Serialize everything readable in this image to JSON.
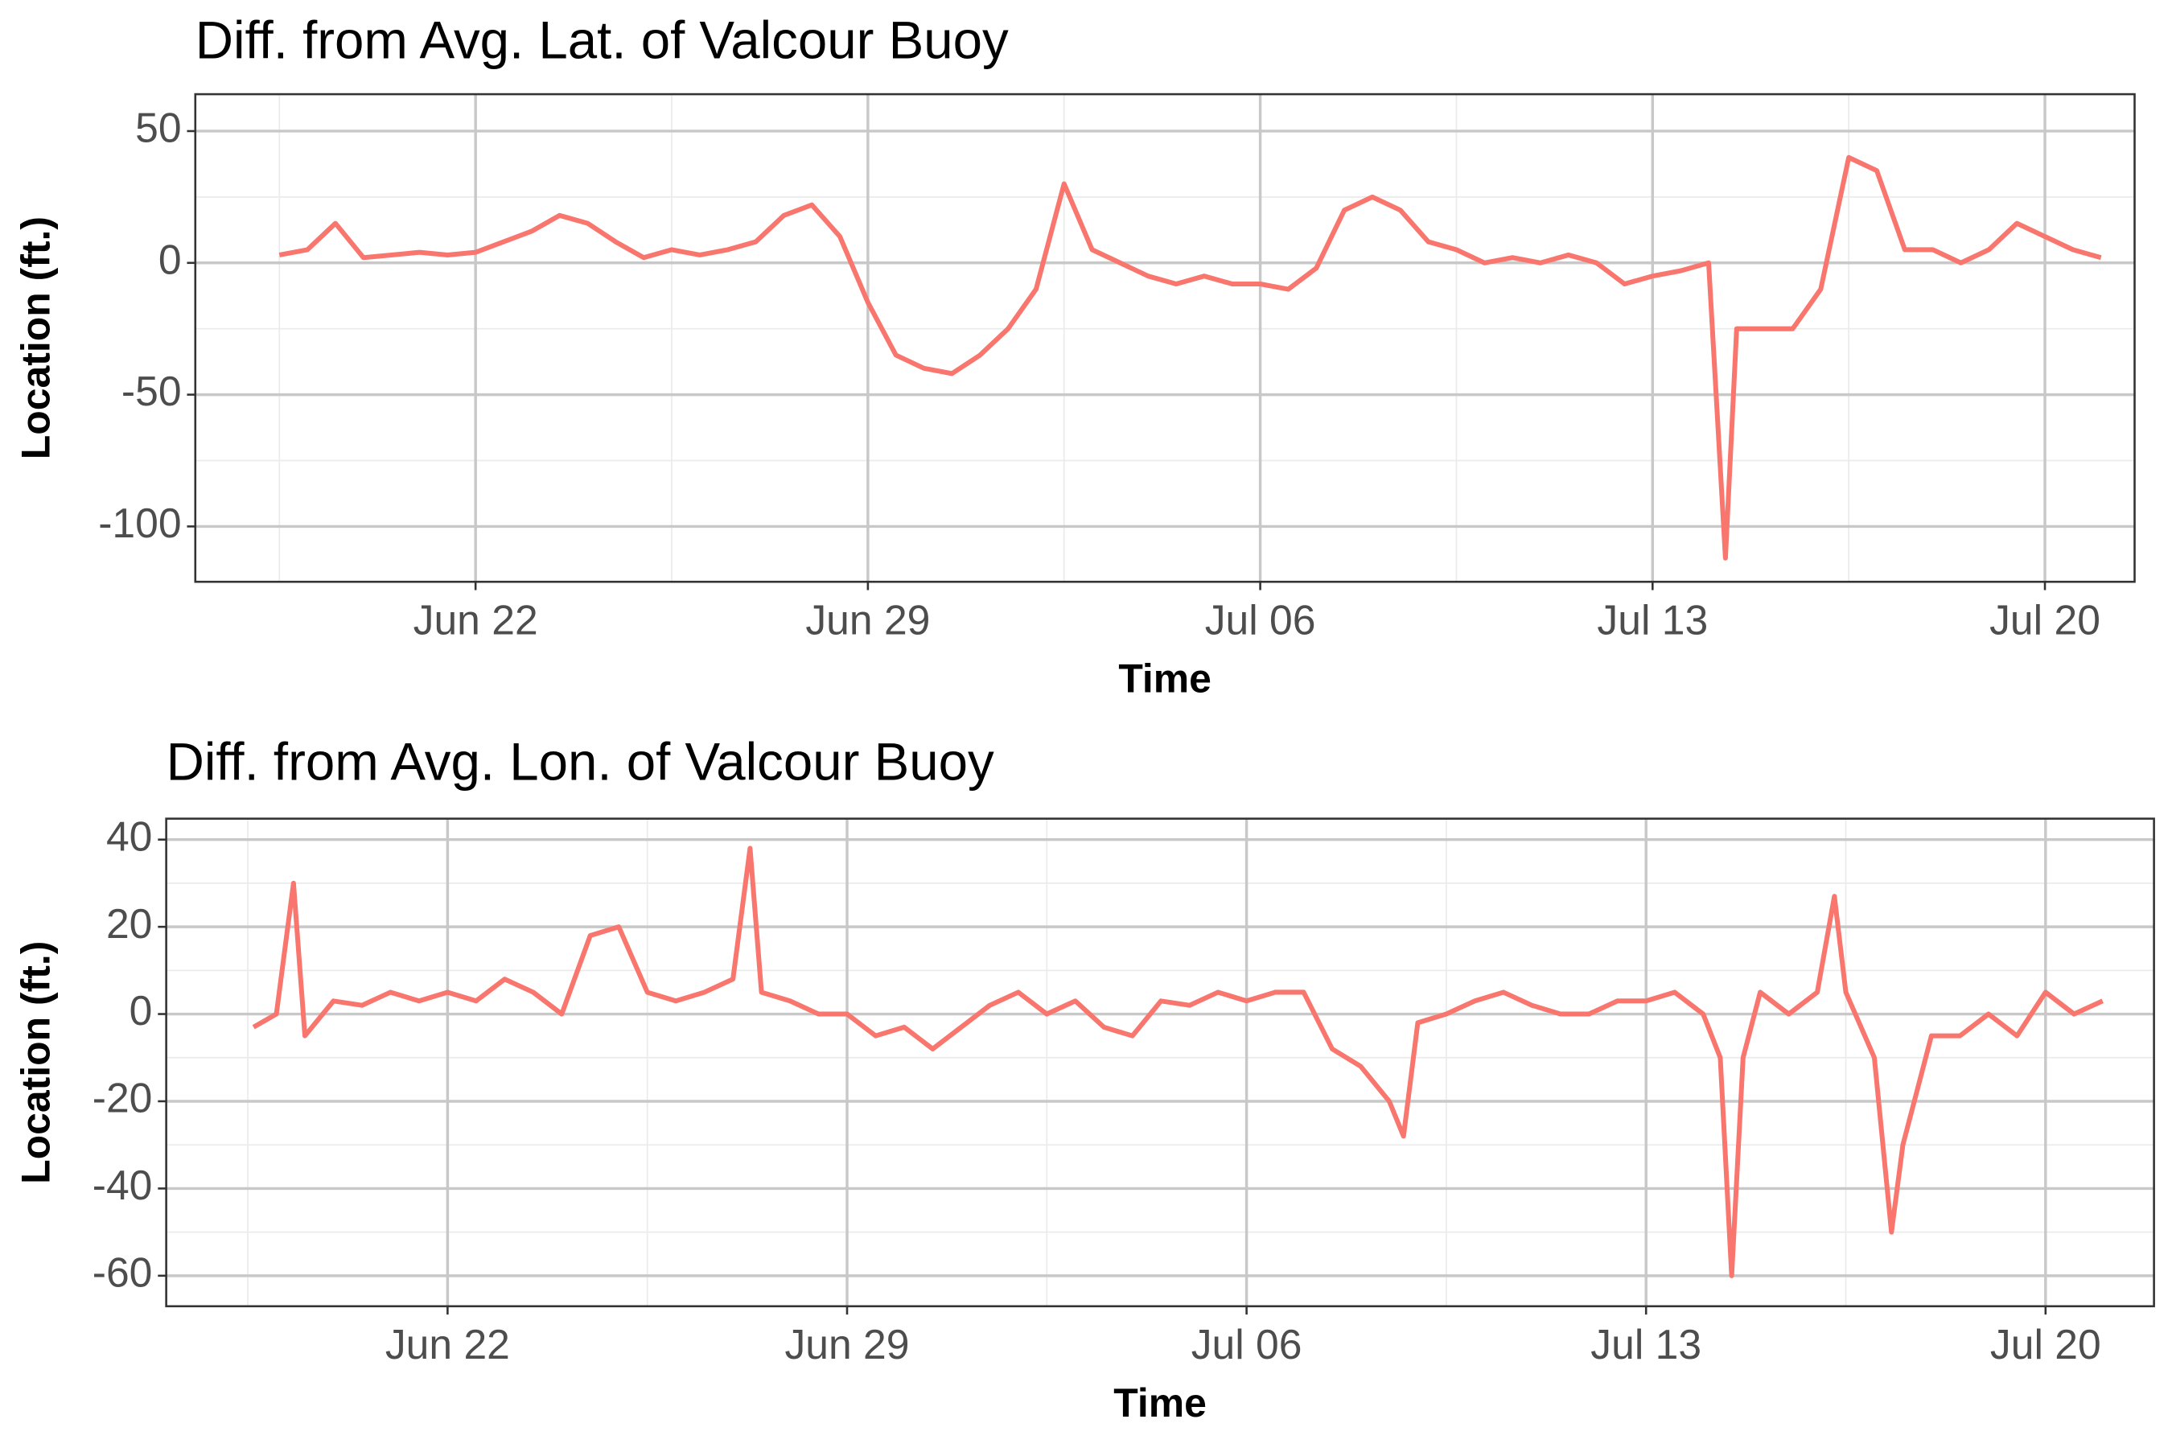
{
  "chart_data": [
    {
      "type": "line",
      "title": "Diff. from Avg. Lat. of Valcour Buoy",
      "x_label": "Time",
      "y_label": "Location (ft.)",
      "color": "#F8766D",
      "grid": true,
      "x": [
        18.5,
        19,
        19.5,
        20,
        20.5,
        21,
        21.5,
        22,
        22.5,
        23,
        23.5,
        24,
        24.5,
        25,
        25.5,
        26,
        26.5,
        27,
        27.5,
        28,
        28.5,
        29,
        29.5,
        30,
        30.5,
        31,
        31.5,
        32,
        32.5,
        33,
        33.5,
        34,
        34.5,
        35,
        35.5,
        36,
        36.5,
        37,
        37.5,
        38,
        38.5,
        39,
        39.5,
        40,
        40.5,
        41,
        41.5,
        42,
        42.5,
        43,
        43.5,
        44,
        44.3,
        44.5,
        45,
        45.5,
        46,
        46.5,
        47,
        47.5,
        48,
        48.5,
        49,
        49.5,
        50,
        50.5,
        51
      ],
      "values": [
        3,
        5,
        15,
        2,
        3,
        4,
        3,
        4,
        8,
        12,
        18,
        15,
        8,
        2,
        5,
        3,
        5,
        8,
        18,
        22,
        10,
        -15,
        -35,
        -40,
        -42,
        -35,
        -25,
        -10,
        30,
        5,
        0,
        -5,
        -8,
        -5,
        -8,
        -8,
        -10,
        -2,
        20,
        25,
        20,
        8,
        5,
        0,
        2,
        0,
        3,
        0,
        -8,
        -5,
        -3,
        0,
        -112,
        -25,
        -25,
        -25,
        -10,
        40,
        35,
        5,
        5,
        0,
        5,
        15,
        10,
        5,
        2
      ],
      "xlim": [
        17.0,
        51.6
      ],
      "ylim": [
        -121,
        64
      ],
      "xticks": [
        {
          "value": 22,
          "label": "Jun 22"
        },
        {
          "value": 29,
          "label": "Jun 29"
        },
        {
          "value": 36,
          "label": "Jul 06"
        },
        {
          "value": 43,
          "label": "Jul 13"
        },
        {
          "value": 50,
          "label": "Jul 20"
        }
      ],
      "yticks": [
        -100,
        -50,
        0,
        50
      ]
    },
    {
      "type": "line",
      "title": "Diff. from Avg. Lon. of Valcour Buoy",
      "x_label": "Time",
      "y_label": "Location (ft.)",
      "color": "#F8766D",
      "grid": true,
      "x": [
        18.6,
        19,
        19.3,
        19.5,
        20,
        20.5,
        21,
        21.5,
        22,
        22.5,
        23,
        23.5,
        24,
        24.5,
        25,
        25.5,
        26,
        26.5,
        27,
        27.3,
        27.5,
        28,
        28.5,
        29,
        29.5,
        30,
        30.5,
        31,
        31.5,
        32,
        32.5,
        33,
        33.5,
        34,
        34.5,
        35,
        35.5,
        36,
        36.5,
        37,
        37.5,
        38,
        38.5,
        38.75,
        39,
        39.5,
        40,
        40.5,
        41,
        41.5,
        42,
        42.5,
        43,
        43.5,
        44,
        44.3,
        44.5,
        44.7,
        45,
        45.5,
        46,
        46.3,
        46.5,
        47,
        47.3,
        47.5,
        48,
        48.5,
        49,
        49.5,
        50,
        50.5,
        51
      ],
      "values": [
        -3,
        0,
        30,
        -5,
        3,
        2,
        5,
        3,
        5,
        3,
        8,
        5,
        0,
        18,
        20,
        5,
        3,
        5,
        8,
        38,
        5,
        3,
        0,
        0,
        -5,
        -3,
        -8,
        -3,
        2,
        5,
        0,
        3,
        -3,
        -5,
        3,
        2,
        5,
        3,
        5,
        5,
        -8,
        -12,
        -20,
        -28,
        -2,
        0,
        3,
        5,
        2,
        0,
        0,
        3,
        3,
        5,
        0,
        -10,
        -60,
        -10,
        5,
        0,
        5,
        27,
        5,
        -10,
        -50,
        -30,
        -5,
        -5,
        0,
        -5,
        5,
        0,
        3
      ],
      "xlim": [
        17.07,
        51.9
      ],
      "ylim": [
        -67,
        44.8
      ],
      "xticks": [
        {
          "value": 22,
          "label": "Jun 22"
        },
        {
          "value": 29,
          "label": "Jun 29"
        },
        {
          "value": 36,
          "label": "Jul 06"
        },
        {
          "value": 43,
          "label": "Jul 13"
        },
        {
          "value": 50,
          "label": "Jul 20"
        }
      ],
      "yticks": [
        -60,
        -40,
        -20,
        0,
        20,
        40
      ]
    }
  ]
}
